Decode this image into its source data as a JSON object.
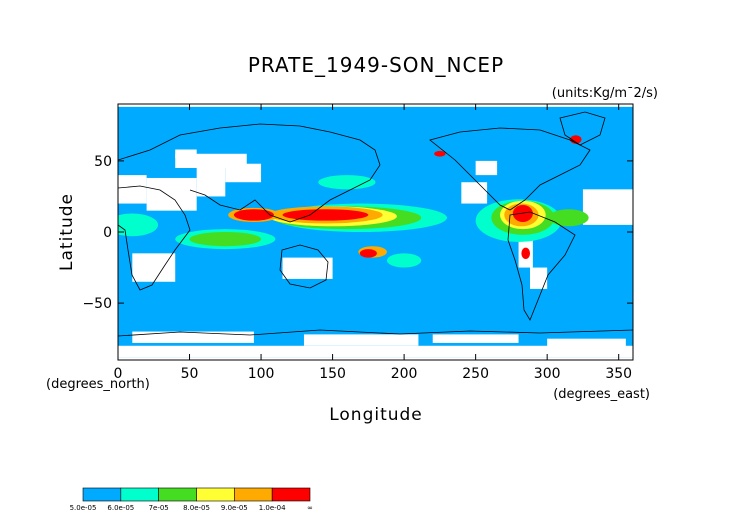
{
  "chart_data": {
    "type": "heatmap",
    "title": "PRATE_1949-SON_NCEP",
    "units_label": "(units:Kg/m¯2/s)",
    "xlabel": "Longitude",
    "ylabel": "Latitude",
    "x_unit_note": "(degrees_east)",
    "y_unit_note": "(degrees_north)",
    "xlim": [
      0,
      360
    ],
    "ylim": [
      -90,
      90
    ],
    "x_ticks": [
      0,
      50,
      100,
      150,
      200,
      250,
      300,
      350
    ],
    "y_ticks": [
      -50,
      0,
      50
    ],
    "x_tick_labels": [
      "0",
      "50",
      "100",
      "150",
      "200",
      "250",
      "300",
      "350"
    ],
    "y_tick_labels": [
      "−50",
      "0",
      "50"
    ],
    "colorbar": {
      "labels": [
        "5.0e-05",
        "6.0e-05",
        "7e-05",
        "8.0e-05",
        "9.0e-05",
        "1.0e-04",
        "∞"
      ],
      "colors": [
        "#00aaff",
        "#00ffcc",
        "#44dd22",
        "#ffff33",
        "#ffaa00",
        "#ff0000"
      ]
    },
    "regions": [
      {
        "level": 0,
        "shape": "rect",
        "lon": [
          0,
          360
        ],
        "lat": [
          -88,
          88
        ]
      },
      {
        "level": -1,
        "shape": "rect",
        "lon": [
          0,
          20
        ],
        "lat": [
          20,
          40
        ]
      },
      {
        "level": -1,
        "shape": "rect",
        "lon": [
          20,
          55
        ],
        "lat": [
          15,
          38
        ]
      },
      {
        "level": -1,
        "shape": "rect",
        "lon": [
          55,
          75
        ],
        "lat": [
          25,
          45
        ]
      },
      {
        "level": -1,
        "shape": "rect",
        "lon": [
          75,
          100
        ],
        "lat": [
          35,
          48
        ]
      },
      {
        "level": -1,
        "shape": "rect",
        "lon": [
          40,
          90
        ],
        "lat": [
          45,
          55
        ]
      },
      {
        "level": -1,
        "shape": "rect",
        "lon": [
          40,
          55
        ],
        "lat": [
          52,
          58
        ]
      },
      {
        "level": -1,
        "shape": "rect",
        "lon": [
          10,
          40
        ],
        "lat": [
          -35,
          -15
        ]
      },
      {
        "level": -1,
        "shape": "rect",
        "lon": [
          115,
          150
        ],
        "lat": [
          -33,
          -18
        ]
      },
      {
        "level": -1,
        "shape": "rect",
        "lon": [
          240,
          258
        ],
        "lat": [
          20,
          35
        ]
      },
      {
        "level": -1,
        "shape": "rect",
        "lon": [
          250,
          265
        ],
        "lat": [
          40,
          50
        ]
      },
      {
        "level": -1,
        "shape": "rect",
        "lon": [
          280,
          290
        ],
        "lat": [
          -25,
          -5
        ]
      },
      {
        "level": -1,
        "shape": "rect",
        "lon": [
          288,
          300
        ],
        "lat": [
          -40,
          -25
        ]
      },
      {
        "level": -1,
        "shape": "rect",
        "lon": [
          325,
          360
        ],
        "lat": [
          5,
          30
        ]
      },
      {
        "level": -1,
        "shape": "rect",
        "lon": [
          0,
          360
        ],
        "lat": [
          -88,
          -80
        ]
      },
      {
        "level": -1,
        "shape": "rect",
        "lon": [
          10,
          95
        ],
        "lat": [
          -78,
          -70
        ]
      },
      {
        "level": -1,
        "shape": "rect",
        "lon": [
          130,
          210
        ],
        "lat": [
          -80,
          -72
        ]
      },
      {
        "level": -1,
        "shape": "rect",
        "lon": [
          220,
          280
        ],
        "lat": [
          -78,
          -72
        ]
      },
      {
        "level": -1,
        "shape": "rect",
        "lon": [
          300,
          355
        ],
        "lat": [
          -82,
          -75
        ]
      },
      {
        "level": 1,
        "shape": "ellipse",
        "lon": 170,
        "lat": 10,
        "rlon": 60,
        "rlat": 10
      },
      {
        "level": 1,
        "shape": "ellipse",
        "lon": 75,
        "lat": -5,
        "rlon": 35,
        "rlat": 7
      },
      {
        "level": 1,
        "shape": "ellipse",
        "lon": 280,
        "lat": 8,
        "rlon": 30,
        "rlat": 15
      },
      {
        "level": 1,
        "shape": "ellipse",
        "lon": 160,
        "lat": 35,
        "rlon": 20,
        "rlat": 5
      },
      {
        "level": 1,
        "shape": "ellipse",
        "lon": 10,
        "lat": 5,
        "rlon": 18,
        "rlat": 8
      },
      {
        "level": 1,
        "shape": "ellipse",
        "lon": 200,
        "lat": -20,
        "rlon": 12,
        "rlat": 5
      },
      {
        "level": 2,
        "shape": "ellipse",
        "lon": 160,
        "lat": 10,
        "rlon": 52,
        "rlat": 8
      },
      {
        "level": 2,
        "shape": "ellipse",
        "lon": 75,
        "lat": -5,
        "rlon": 25,
        "rlat": 5
      },
      {
        "level": 2,
        "shape": "ellipse",
        "lon": 283,
        "lat": 10,
        "rlon": 22,
        "rlat": 12
      },
      {
        "level": 2,
        "shape": "ellipse",
        "lon": 315,
        "lat": 10,
        "rlon": 14,
        "rlat": 6
      },
      {
        "level": 3,
        "shape": "ellipse",
        "lon": 150,
        "lat": 11,
        "rlon": 45,
        "rlat": 7
      },
      {
        "level": 3,
        "shape": "ellipse",
        "lon": 283,
        "lat": 12,
        "rlon": 16,
        "rlat": 10
      },
      {
        "level": 4,
        "shape": "ellipse",
        "lon": 145,
        "lat": 12,
        "rlon": 40,
        "rlat": 6
      },
      {
        "level": 4,
        "shape": "ellipse",
        "lon": 95,
        "lat": 12,
        "rlon": 18,
        "rlat": 5
      },
      {
        "level": 4,
        "shape": "ellipse",
        "lon": 282,
        "lat": 12,
        "rlon": 12,
        "rlat": 8
      },
      {
        "level": 4,
        "shape": "ellipse",
        "lon": 178,
        "lat": -14,
        "rlon": 10,
        "rlat": 4
      },
      {
        "level": 5,
        "shape": "ellipse",
        "lon": 145,
        "lat": 12,
        "rlon": 30,
        "rlat": 4
      },
      {
        "level": 5,
        "shape": "ellipse",
        "lon": 95,
        "lat": 12,
        "rlon": 14,
        "rlat": 4
      },
      {
        "level": 5,
        "shape": "ellipse",
        "lon": 283,
        "lat": 13,
        "rlon": 7,
        "rlat": 6
      },
      {
        "level": 5,
        "shape": "ellipse",
        "lon": 320,
        "lat": 65,
        "rlon": 4,
        "rlat": 3
      },
      {
        "level": 5,
        "shape": "ellipse",
        "lon": 285,
        "lat": -15,
        "rlon": 3,
        "rlat": 4
      },
      {
        "level": 5,
        "shape": "ellipse",
        "lon": 225,
        "lat": 55,
        "rlon": 4,
        "rlat": 2
      },
      {
        "level": 5,
        "shape": "ellipse",
        "lon": 175,
        "lat": -15,
        "rlon": 6,
        "rlat": 3
      }
    ]
  }
}
